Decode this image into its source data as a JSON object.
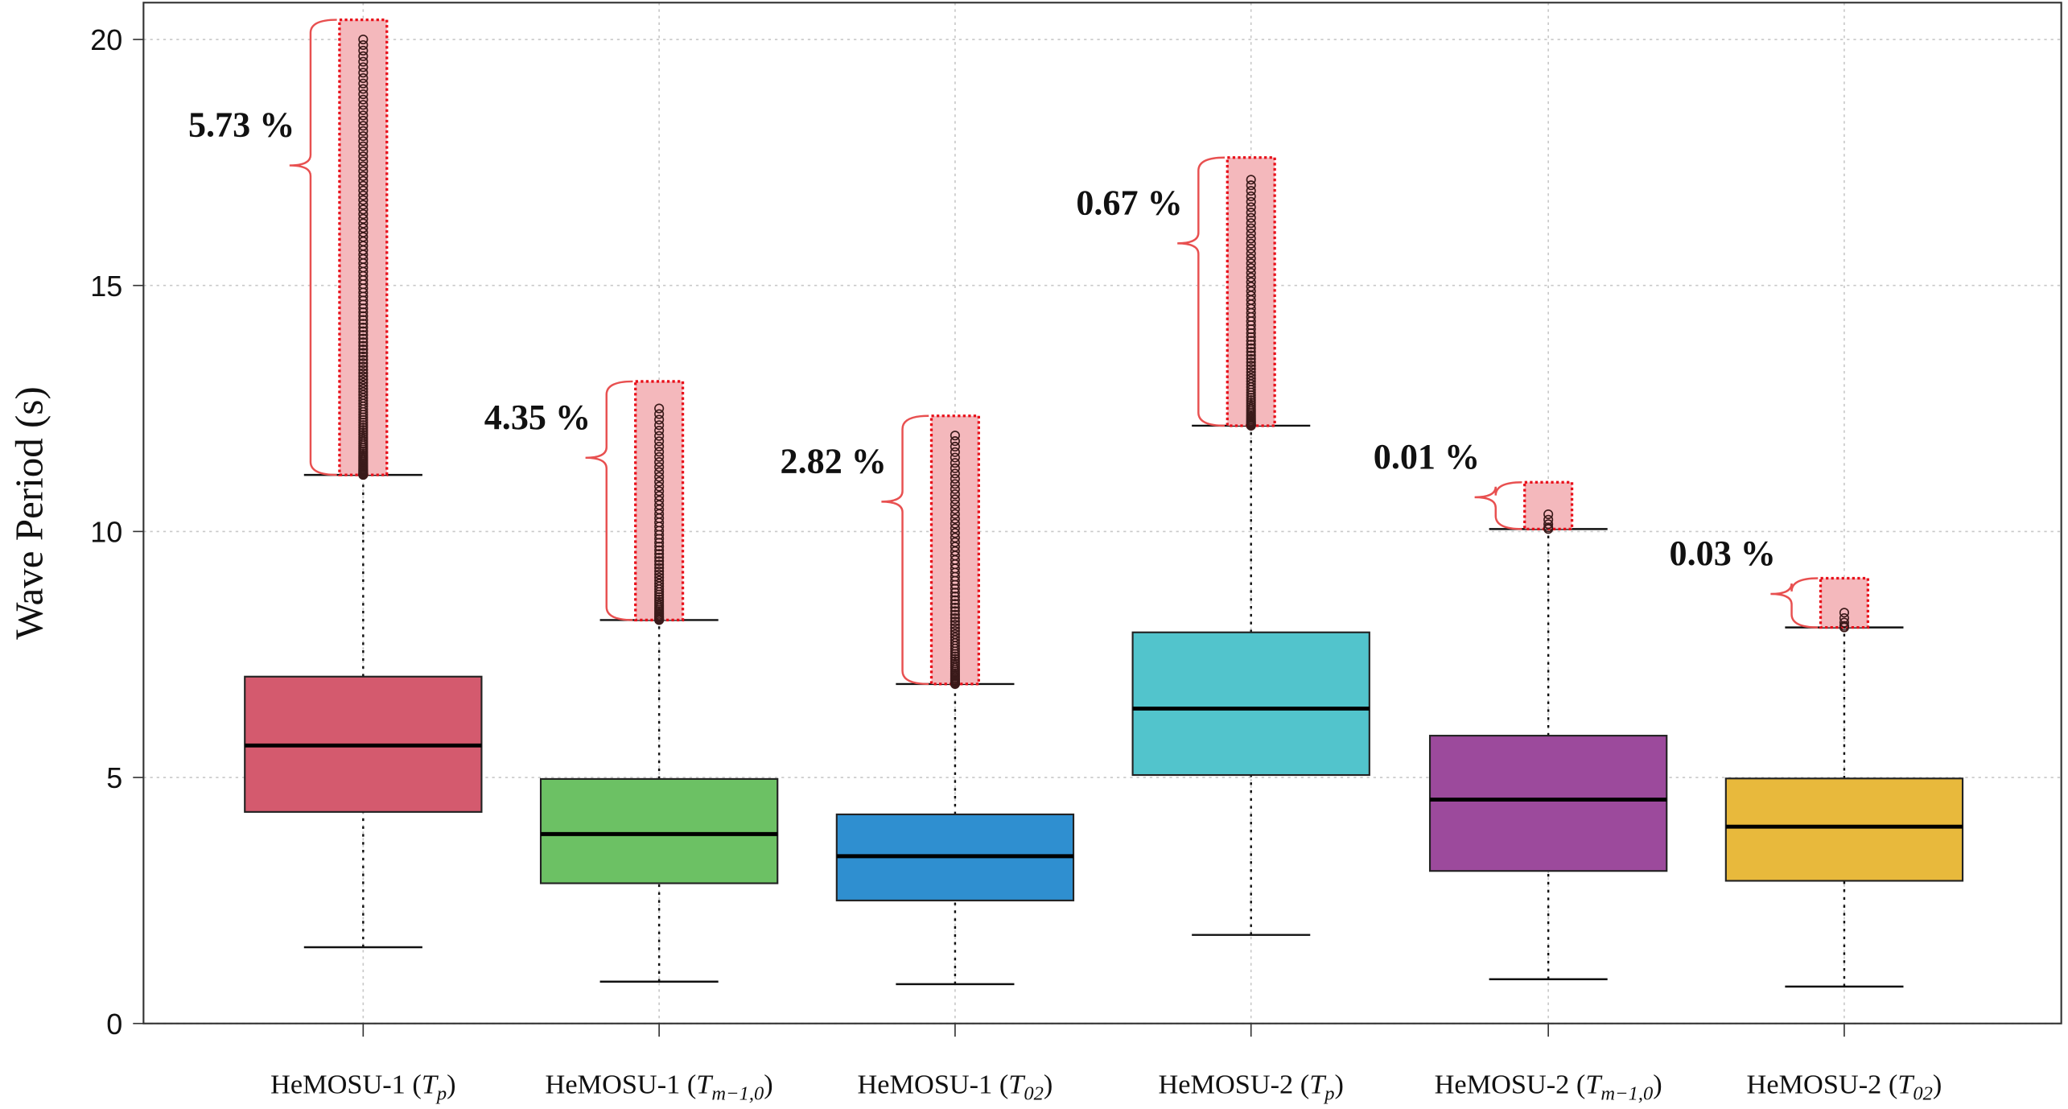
{
  "chart_data": {
    "type": "box",
    "title": "",
    "ylabel": "Wave Period (s)",
    "xlabel": "",
    "ylim": [
      0,
      20.8
    ],
    "yticks": [
      0,
      5,
      10,
      15,
      20
    ],
    "grid": true,
    "categories": [
      {
        "base": "HeMOSU-1 (",
        "sym": "T",
        "sub": "p",
        "end": ")"
      },
      {
        "base": "HeMOSU-1 (",
        "sym": "T",
        "sub": "m−1,0",
        "end": ")"
      },
      {
        "base": "HeMOSU-1 (",
        "sym": "T",
        "sub": "02",
        "end": ")"
      },
      {
        "base": "HeMOSU-2 (",
        "sym": "T",
        "sub": "p",
        "end": ")"
      },
      {
        "base": "HeMOSU-2 (",
        "sym": "T",
        "sub": "m−1,0",
        "end": ")"
      },
      {
        "base": "HeMOSU-2 (",
        "sym": "T",
        "sub": "02",
        "end": ")"
      }
    ],
    "boxes": [
      {
        "whisker_low": 1.55,
        "q1": 4.3,
        "median": 5.65,
        "q3": 7.05,
        "whisker_high": 11.15,
        "outlier_max": 20.0,
        "outlier_region_top": 20.4,
        "outlier_pct": "5.73 %",
        "color": "#d45a6e"
      },
      {
        "whisker_low": 0.85,
        "q1": 2.85,
        "median": 3.85,
        "q3": 4.97,
        "whisker_high": 8.2,
        "outlier_max": 12.5,
        "outlier_region_top": 13.05,
        "outlier_pct": "4.35 %",
        "color": "#6cc164"
      },
      {
        "whisker_low": 0.8,
        "q1": 2.5,
        "median": 3.4,
        "q3": 4.25,
        "whisker_high": 6.9,
        "outlier_max": 11.95,
        "outlier_region_top": 12.35,
        "outlier_pct": "2.82 %",
        "color": "#2f8fd0"
      },
      {
        "whisker_low": 1.8,
        "q1": 5.05,
        "median": 6.4,
        "q3": 7.95,
        "whisker_high": 12.15,
        "outlier_max": 17.15,
        "outlier_region_top": 17.6,
        "outlier_pct": "0.67 %",
        "color": "#52c4cc"
      },
      {
        "whisker_low": 0.9,
        "q1": 3.1,
        "median": 4.55,
        "q3": 5.85,
        "whisker_high": 10.05,
        "outlier_max": 10.35,
        "outlier_region_top": 11.0,
        "outlier_pct": "0.01 %",
        "color": "#9c4a9c"
      },
      {
        "whisker_low": 0.75,
        "q1": 2.9,
        "median": 4.0,
        "q3": 4.98,
        "whisker_high": 8.05,
        "outlier_max": 8.35,
        "outlier_region_top": 9.05,
        "outlier_pct": "0.03 %",
        "color": "#e8b93c"
      }
    ],
    "highlight_color": "#f4b8bc",
    "highlight_border": "#e8101a"
  }
}
